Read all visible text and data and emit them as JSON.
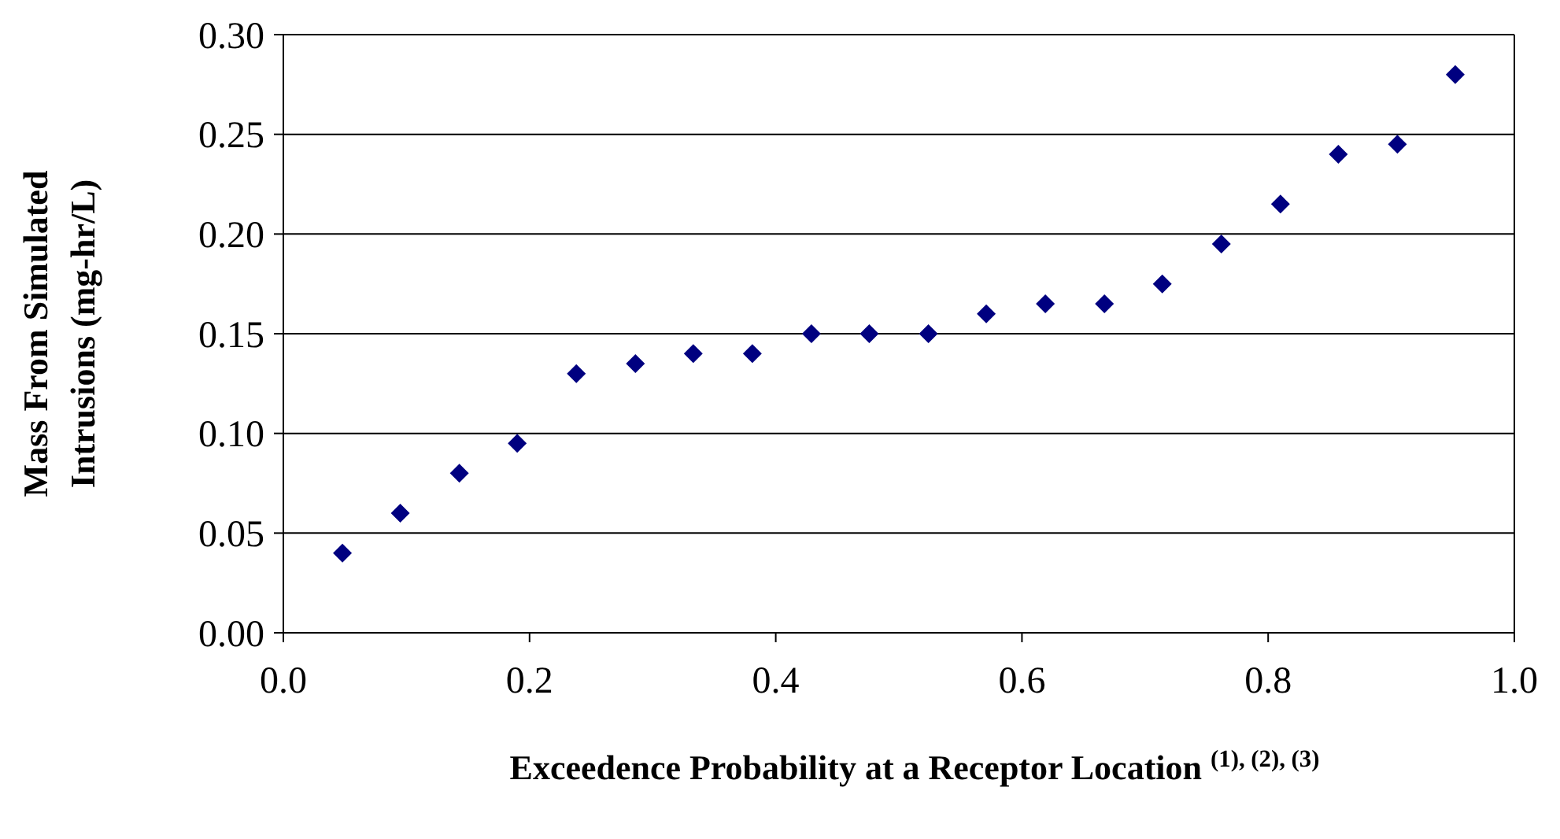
{
  "chart_data": {
    "type": "scatter",
    "xlabel": "Exceedence Probability at a Receptor Location $^{(1), (2), (3)}$",
    "ylabel": "Mass From Simulated\nIntrusions (mg-hr/L)",
    "x": [
      0.048,
      0.095,
      0.143,
      0.19,
      0.238,
      0.286,
      0.333,
      0.381,
      0.429,
      0.476,
      0.524,
      0.571,
      0.619,
      0.667,
      0.714,
      0.762,
      0.81,
      0.857,
      0.905,
      0.952
    ],
    "series": [
      {
        "color": "#000080",
        "values": [
          0.04,
          0.06,
          0.08,
          0.095,
          0.13,
          0.135,
          0.14,
          0.14,
          0.15,
          0.15,
          0.15,
          0.16,
          0.165,
          0.165,
          0.175,
          0.195,
          0.215,
          0.24,
          0.245,
          0.28
        ]
      }
    ],
    "xlim": [
      0,
      1
    ],
    "xticks": [
      {
        "value": 0,
        "label": "0.0"
      },
      0.2,
      0.4,
      0.6,
      0.8,
      {
        "value": 1,
        "label": "1.0"
      }
    ],
    "ylim": [
      0,
      0.3
    ],
    "yticks": [
      {
        "value": 0,
        "label": "0.00"
      },
      0.05,
      {
        "value": 0.1,
        "label": "0.10"
      },
      0.15,
      {
        "value": 0.2,
        "label": "0.20"
      },
      0.25,
      {
        "value": 0.3,
        "label": "0.30"
      }
    ],
    "grid": "y",
    "marker": "diamond"
  }
}
